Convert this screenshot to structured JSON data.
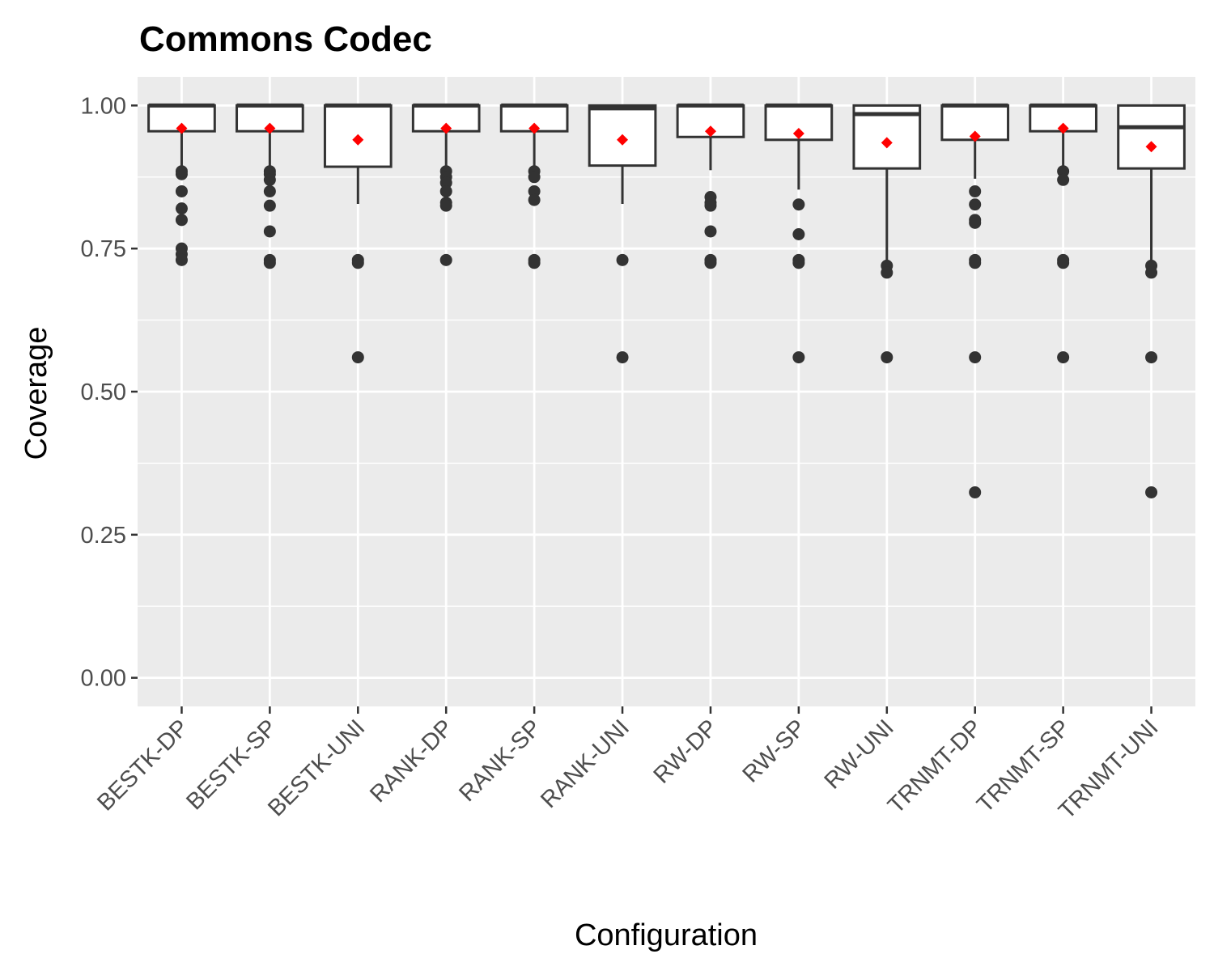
{
  "chart_data": {
    "type": "boxplot",
    "title": "Commons Codec",
    "xlabel": "Configuration",
    "ylabel": "Coverage",
    "ylim": [
      -0.05,
      1.05
    ],
    "yticks": [
      0.0,
      0.25,
      0.5,
      0.75,
      1.0
    ],
    "ytick_labels": [
      "0.00",
      "0.25",
      "0.50",
      "0.75",
      "1.00"
    ],
    "grid": true,
    "legend": "none",
    "mean_marker_color": "#ff0000",
    "box_fill": "#ffffff",
    "box_stroke": "#333333",
    "panel_background": "#ebebeb",
    "categories": [
      "BESTK-DP",
      "BESTK-SP",
      "BESTK-UNI",
      "RANK-DP",
      "RANK-SP",
      "RANK-UNI",
      "RW-DP",
      "RW-SP",
      "RW-UNI",
      "TRNMT-DP",
      "TRNMT-SP",
      "TRNMT-UNI"
    ],
    "boxes": [
      {
        "q1": 0.955,
        "median": 1.0,
        "q3": 1.0,
        "whisker_low": 0.89,
        "whisker_high": 1.0,
        "mean": 0.96,
        "outliers": [
          0.88,
          0.885,
          0.85,
          0.82,
          0.8,
          0.75,
          0.74,
          0.73
        ]
      },
      {
        "q1": 0.955,
        "median": 1.0,
        "q3": 1.0,
        "whisker_low": 0.89,
        "whisker_high": 1.0,
        "mean": 0.96,
        "outliers": [
          0.885,
          0.88,
          0.87,
          0.85,
          0.825,
          0.78,
          0.73,
          0.725
        ]
      },
      {
        "q1": 0.893,
        "median": 1.0,
        "q3": 1.0,
        "whisker_low": 0.828,
        "whisker_high": 1.0,
        "mean": 0.94,
        "outliers": [
          0.73,
          0.725,
          0.56
        ]
      },
      {
        "q1": 0.955,
        "median": 1.0,
        "q3": 1.0,
        "whisker_low": 0.89,
        "whisker_high": 1.0,
        "mean": 0.96,
        "outliers": [
          0.885,
          0.875,
          0.865,
          0.85,
          0.83,
          0.825,
          0.73
        ]
      },
      {
        "q1": 0.955,
        "median": 1.0,
        "q3": 1.0,
        "whisker_low": 0.89,
        "whisker_high": 1.0,
        "mean": 0.96,
        "outliers": [
          0.885,
          0.875,
          0.85,
          0.835,
          0.73,
          0.725
        ]
      },
      {
        "q1": 0.895,
        "median": 0.995,
        "q3": 1.0,
        "whisker_low": 0.828,
        "whisker_high": 1.0,
        "mean": 0.94,
        "outliers": [
          0.73,
          0.56
        ]
      },
      {
        "q1": 0.945,
        "median": 1.0,
        "q3": 1.0,
        "whisker_low": 0.887,
        "whisker_high": 1.0,
        "mean": 0.955,
        "outliers": [
          0.84,
          0.83,
          0.825,
          0.78,
          0.73,
          0.725
        ]
      },
      {
        "q1": 0.94,
        "median": 1.0,
        "q3": 1.0,
        "whisker_low": 0.853,
        "whisker_high": 1.0,
        "mean": 0.951,
        "outliers": [
          0.827,
          0.775,
          0.73,
          0.725,
          0.56
        ]
      },
      {
        "q1": 0.89,
        "median": 0.985,
        "q3": 1.0,
        "whisker_low": 0.72,
        "whisker_high": 1.0,
        "mean": 0.935,
        "outliers": [
          0.72,
          0.708,
          0.56
        ]
      },
      {
        "q1": 0.94,
        "median": 1.0,
        "q3": 1.0,
        "whisker_low": 0.872,
        "whisker_high": 1.0,
        "mean": 0.946,
        "outliers": [
          0.85,
          0.827,
          0.8,
          0.795,
          0.73,
          0.725,
          0.56,
          0.324
        ]
      },
      {
        "q1": 0.955,
        "median": 1.0,
        "q3": 1.0,
        "whisker_low": 0.89,
        "whisker_high": 1.0,
        "mean": 0.96,
        "outliers": [
          0.885,
          0.87,
          0.73,
          0.725,
          0.56
        ]
      },
      {
        "q1": 0.89,
        "median": 0.962,
        "q3": 1.0,
        "whisker_low": 0.72,
        "whisker_high": 1.0,
        "mean": 0.928,
        "outliers": [
          0.72,
          0.708,
          0.56,
          0.324
        ]
      }
    ]
  }
}
